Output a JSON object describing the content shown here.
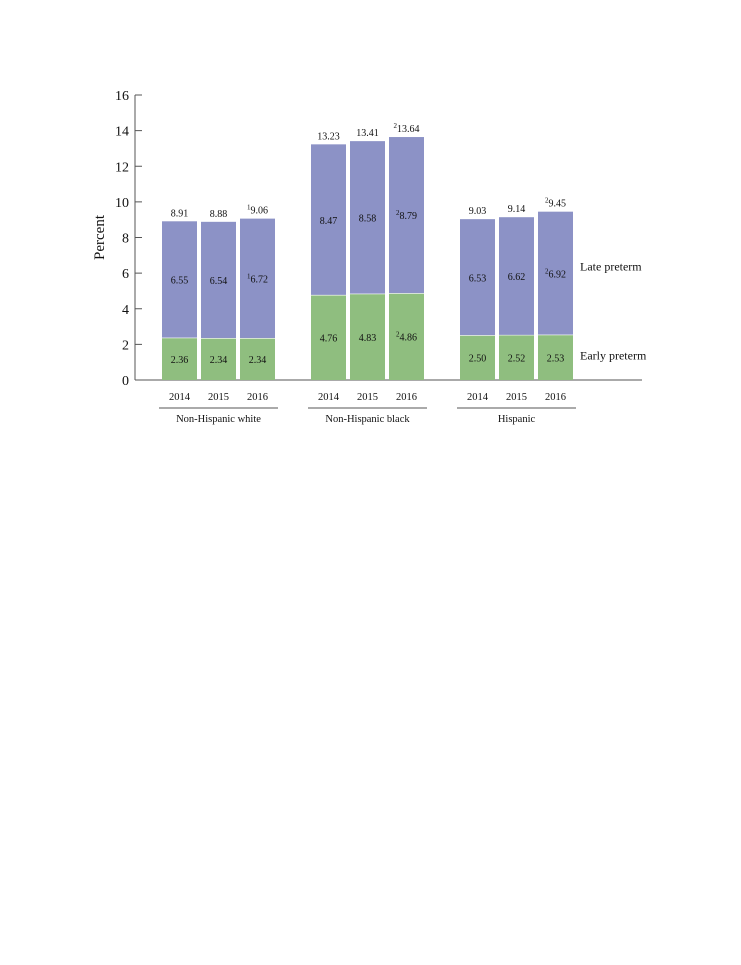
{
  "chart_data": {
    "type": "bar",
    "stacked": true,
    "ylabel": "Percent",
    "ylim": [
      0,
      16
    ],
    "yticks": [
      0,
      2,
      4,
      6,
      8,
      10,
      12,
      14,
      16
    ],
    "groups": [
      {
        "name": "Non-Hispanic white",
        "bars": [
          {
            "year": "2014",
            "early": 2.36,
            "late": 6.55,
            "total": 8.91,
            "early_label": "2.36",
            "late_label": "6.55",
            "total_label": "8.91",
            "early_note": "",
            "late_note": "",
            "total_note": ""
          },
          {
            "year": "2015",
            "early": 2.34,
            "late": 6.54,
            "total": 8.88,
            "early_label": "2.34",
            "late_label": "6.54",
            "total_label": "8.88",
            "early_note": "",
            "late_note": "",
            "total_note": ""
          },
          {
            "year": "2016",
            "early": 2.34,
            "late": 6.72,
            "total": 9.06,
            "early_label": "2.34",
            "late_label": "6.72",
            "total_label": "9.06",
            "early_note": "",
            "late_note": "1",
            "total_note": "1"
          }
        ]
      },
      {
        "name": "Non-Hispanic black",
        "bars": [
          {
            "year": "2014",
            "early": 4.76,
            "late": 8.47,
            "total": 13.23,
            "early_label": "4.76",
            "late_label": "8.47",
            "total_label": "13.23",
            "early_note": "",
            "late_note": "",
            "total_note": ""
          },
          {
            "year": "2015",
            "early": 4.83,
            "late": 8.58,
            "total": 13.41,
            "early_label": "4.83",
            "late_label": "8.58",
            "total_label": "13.41",
            "early_note": "",
            "late_note": "",
            "total_note": ""
          },
          {
            "year": "2016",
            "early": 4.86,
            "late": 8.79,
            "total": 13.64,
            "early_label": "4.86",
            "late_label": "8.79",
            "total_label": "13.64",
            "early_note": "2",
            "late_note": "2",
            "total_note": "2"
          }
        ]
      },
      {
        "name": "Hispanic",
        "bars": [
          {
            "year": "2014",
            "early": 2.5,
            "late": 6.53,
            "total": 9.03,
            "early_label": "2.50",
            "late_label": "6.53",
            "total_label": "9.03",
            "early_note": "",
            "late_note": "",
            "total_note": ""
          },
          {
            "year": "2015",
            "early": 2.52,
            "late": 6.62,
            "total": 9.14,
            "early_label": "2.52",
            "late_label": "6.62",
            "total_label": "9.14",
            "early_note": "",
            "late_note": "",
            "total_note": ""
          },
          {
            "year": "2016",
            "early": 2.53,
            "late": 6.92,
            "total": 9.45,
            "early_label": "2.53",
            "late_label": "6.92",
            "total_label": "9.45",
            "early_note": "",
            "late_note": "2",
            "total_note": "2"
          }
        ]
      }
    ],
    "series": [
      {
        "name": "Early preterm",
        "key": "early",
        "color": "#8fbe7f"
      },
      {
        "name": "Late preterm",
        "key": "late",
        "color": "#8c92c6"
      }
    ],
    "grid": false,
    "legend": "right, inline labels"
  }
}
